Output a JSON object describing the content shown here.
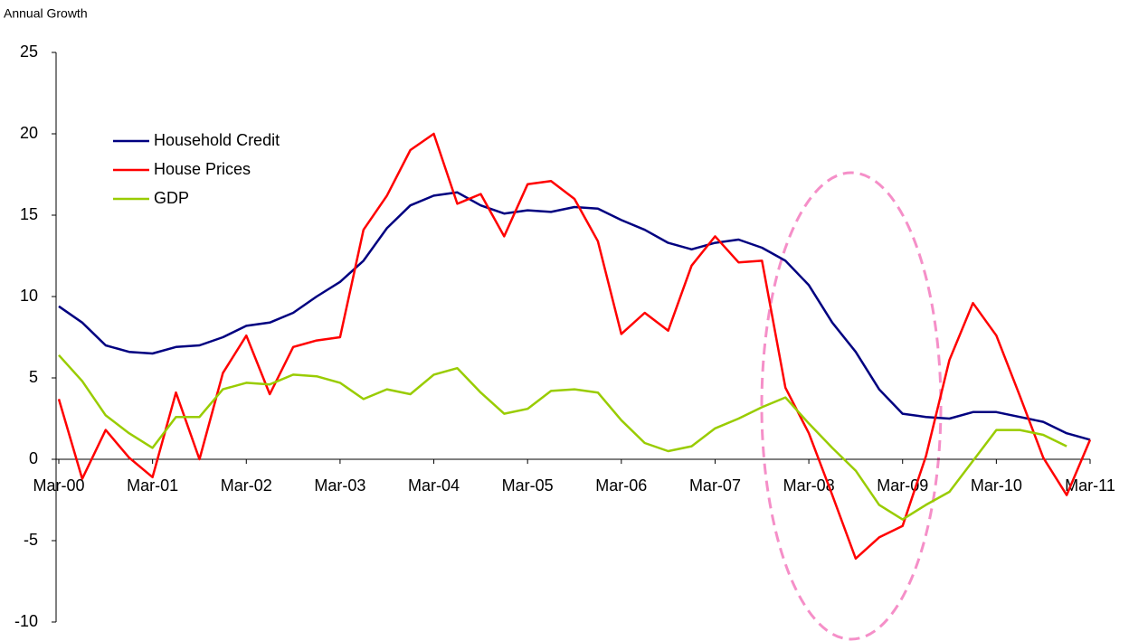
{
  "chart_data": {
    "type": "line",
    "title": "Annual Growth",
    "categories": [
      "Mar-00",
      null,
      null,
      null,
      "Mar-01",
      null,
      null,
      null,
      "Mar-02",
      null,
      null,
      null,
      "Mar-03",
      null,
      null,
      null,
      "Mar-04",
      null,
      null,
      null,
      "Mar-05",
      null,
      null,
      null,
      "Mar-06",
      null,
      null,
      null,
      "Mar-07",
      null,
      null,
      null,
      "Mar-08",
      null,
      null,
      null,
      "Mar-09",
      null,
      null,
      null,
      "Mar-10",
      null,
      null,
      null,
      "Mar-11"
    ],
    "series": [
      {
        "name": "Household Credit",
        "color": "#000080",
        "values": [
          9.4,
          8.4,
          7.0,
          6.6,
          6.5,
          6.9,
          7.0,
          7.5,
          8.2,
          8.4,
          9.0,
          10.0,
          10.9,
          12.2,
          14.2,
          15.6,
          16.2,
          16.4,
          15.6,
          15.1,
          15.3,
          15.2,
          15.5,
          15.4,
          14.7,
          14.1,
          13.3,
          12.9,
          13.3,
          13.5,
          13.0,
          12.2,
          10.7,
          8.4,
          6.6,
          4.3,
          2.8,
          2.6,
          2.5,
          2.9,
          2.9,
          2.6,
          2.3,
          1.6,
          1.2
        ]
      },
      {
        "name": "House Prices",
        "color": "#ff0000",
        "values": [
          3.7,
          -1.2,
          1.8,
          0.1,
          -1.1,
          4.1,
          0,
          5.3,
          7.6,
          4.0,
          6.9,
          7.3,
          7.5,
          14.1,
          16.2,
          19.0,
          20.0,
          15.7,
          16.3,
          13.7,
          16.9,
          17.1,
          16.0,
          13.4,
          7.7,
          9.0,
          7.9,
          11.9,
          13.7,
          12.1,
          12.2,
          4.4,
          1.6,
          -2.2,
          -6.1,
          -4.8,
          -4.1,
          0.2,
          6.1,
          9.6,
          7.6,
          3.9,
          0.1,
          -2.2,
          1.2
        ]
      },
      {
        "name": "GDP",
        "color": "#99cc00",
        "values": [
          6.4,
          4.8,
          2.7,
          1.6,
          0.7,
          2.6,
          2.6,
          4.3,
          4.7,
          4.6,
          5.2,
          5.1,
          4.7,
          3.7,
          4.3,
          4.0,
          5.2,
          5.6,
          4.1,
          2.8,
          3.1,
          4.2,
          4.3,
          4.1,
          2.4,
          1.0,
          0.5,
          0.8,
          1.9,
          2.5,
          3.2,
          3.8,
          2.2,
          0.7,
          -0.7,
          -2.8,
          -3.7,
          -2.8,
          -2.0,
          -0.1,
          1.8,
          1.8,
          1.5,
          0.8,
          null
        ]
      }
    ],
    "ylim": [
      -10,
      25
    ],
    "yticks": [
      -10,
      -5,
      0,
      5,
      10,
      15,
      20,
      25
    ],
    "legend": "upper left"
  }
}
